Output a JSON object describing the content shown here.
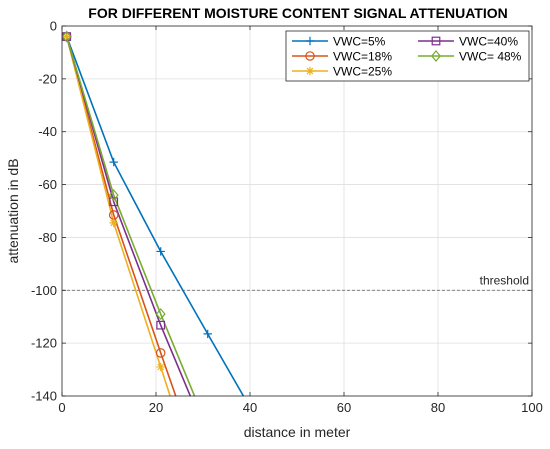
{
  "chart_data": {
    "type": "line",
    "title": "FOR DIFFERENT MOISTURE CONTENT SIGNAL ATTENUATION",
    "xlabel": "distance in meter",
    "ylabel": "attenuation in dB",
    "xlim": [
      0,
      100
    ],
    "ylim": [
      -140,
      0
    ],
    "xticks": [
      0,
      20,
      40,
      60,
      80,
      100
    ],
    "yticks": [
      0,
      -20,
      -40,
      -60,
      -80,
      -100,
      -120,
      -140
    ],
    "grid": true,
    "legend_position": "top-right",
    "series": [
      {
        "name": "VWC=5%",
        "color": "#0072BD",
        "marker": "plus",
        "x": [
          1,
          11,
          21,
          31,
          38.6
        ],
        "y": [
          -4,
          -51.5,
          -85.3,
          -116.5,
          -140
        ]
      },
      {
        "name": "VWC=18%",
        "color": "#D95319",
        "marker": "circle",
        "x": [
          1,
          11,
          21,
          24.2
        ],
        "y": [
          -4,
          -71.5,
          -123.7,
          -140
        ]
      },
      {
        "name": "VWC=25%",
        "color": "#EDB120",
        "marker": "asterisk",
        "x": [
          1,
          11,
          21,
          23
        ],
        "y": [
          -4,
          -74.5,
          -129,
          -140
        ]
      },
      {
        "name": "VWC=40%",
        "color": "#7E2F8E",
        "marker": "square",
        "x": [
          1,
          11,
          21,
          27.3
        ],
        "y": [
          -4,
          -66.5,
          -113.2,
          -140
        ]
      },
      {
        "name": "VWC= 48%",
        "color": "#77AC30",
        "marker": "diamond",
        "x": [
          1,
          11,
          21,
          28.2
        ],
        "y": [
          -4,
          -64,
          -109,
          -140
        ]
      }
    ],
    "threshold": {
      "y": -100,
      "label": "threshold"
    }
  }
}
